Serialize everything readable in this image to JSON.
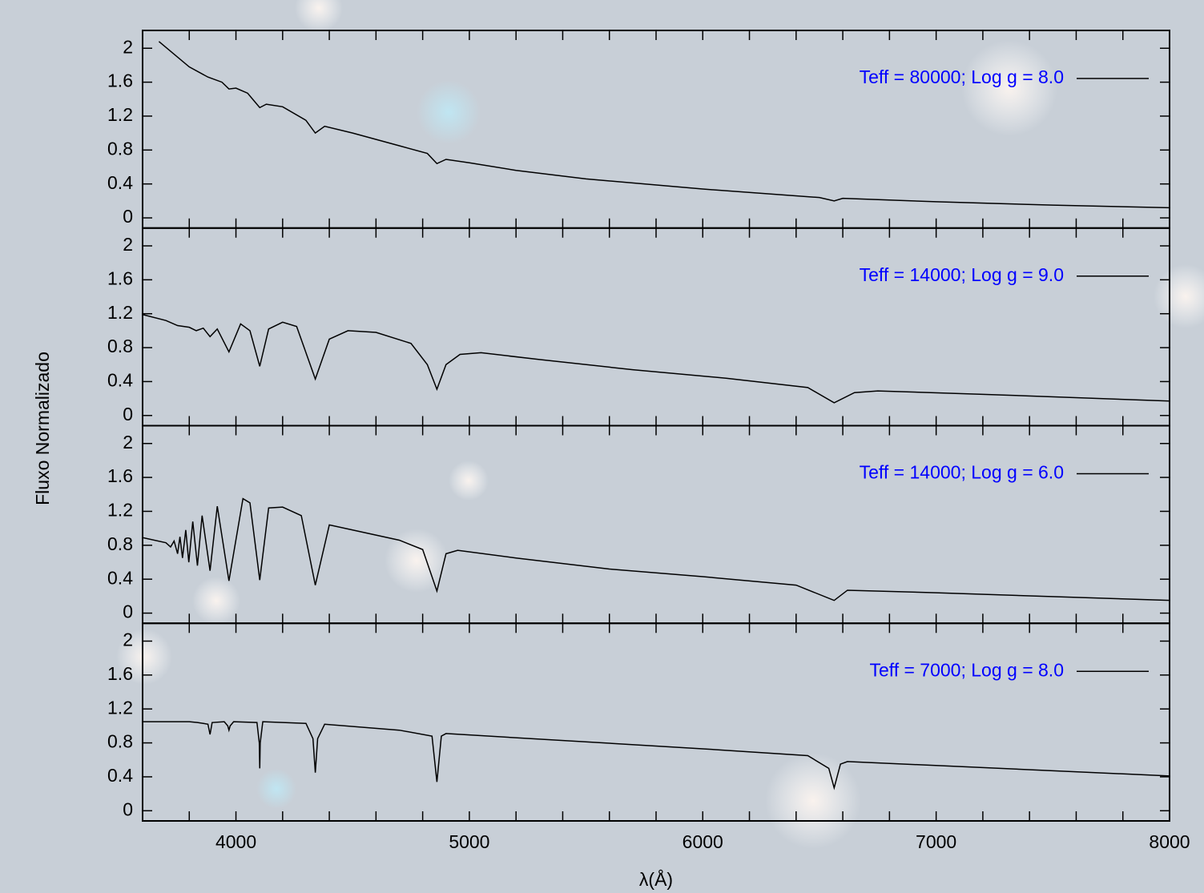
{
  "chart_data": [
    {
      "type": "line",
      "xlim": [
        3600,
        8000
      ],
      "ylim": [
        -0.12,
        2.21
      ],
      "yticks": [
        0,
        0.4,
        0.8,
        1.2,
        1.6,
        2
      ],
      "legend": "top-right",
      "x": [
        3670,
        3800,
        3880,
        3940,
        3970,
        4000,
        4050,
        4102,
        4130,
        4200,
        4300,
        4340,
        4380,
        4500,
        4700,
        4820,
        4861,
        4900,
        5000,
        5200,
        5500,
        6000,
        6500,
        6563,
        6600,
        7000,
        7500,
        8000
      ],
      "series": [
        {
          "name": "Teff = 80000; Log g = 8.0",
          "color": "#000000",
          "values": [
            2.08,
            1.78,
            1.66,
            1.6,
            1.52,
            1.53,
            1.47,
            1.3,
            1.34,
            1.31,
            1.15,
            1.0,
            1.08,
            1.0,
            0.85,
            0.76,
            0.64,
            0.69,
            0.65,
            0.56,
            0.46,
            0.34,
            0.24,
            0.2,
            0.23,
            0.19,
            0.15,
            0.12
          ]
        }
      ]
    },
    {
      "type": "line",
      "xlim": [
        3600,
        8000
      ],
      "ylim": [
        -0.12,
        2.21
      ],
      "yticks": [
        0,
        0.4,
        0.8,
        1.2,
        1.6,
        2
      ],
      "legend": "top-right",
      "x": [
        3600,
        3700,
        3750,
        3800,
        3830,
        3860,
        3889,
        3920,
        3970,
        4020,
        4060,
        4102,
        4140,
        4200,
        4260,
        4340,
        4400,
        4480,
        4600,
        4750,
        4820,
        4861,
        4900,
        4960,
        5050,
        5300,
        5700,
        6100,
        6450,
        6563,
        6650,
        6750,
        7200,
        8000
      ],
      "series": [
        {
          "name": "Teff = 14000; Log g = 9.0",
          "color": "#000000",
          "values": [
            1.19,
            1.12,
            1.06,
            1.04,
            1.0,
            1.03,
            0.93,
            1.02,
            0.75,
            1.08,
            1.0,
            0.58,
            1.02,
            1.1,
            1.05,
            0.43,
            0.9,
            1.0,
            0.98,
            0.85,
            0.6,
            0.31,
            0.6,
            0.72,
            0.74,
            0.66,
            0.54,
            0.44,
            0.33,
            0.15,
            0.27,
            0.29,
            0.25,
            0.17
          ]
        }
      ]
    },
    {
      "type": "line",
      "xlim": [
        3600,
        8000
      ],
      "ylim": [
        -0.12,
        2.21
      ],
      "yticks": [
        0,
        0.4,
        0.8,
        1.2,
        1.6,
        2
      ],
      "legend": "top-right",
      "x": [
        3600,
        3700,
        3720,
        3735,
        3750,
        3760,
        3771,
        3785,
        3798,
        3815,
        3835,
        3855,
        3889,
        3920,
        3970,
        4030,
        4060,
        4102,
        4140,
        4200,
        4280,
        4340,
        4400,
        4500,
        4700,
        4800,
        4861,
        4900,
        4950,
        5200,
        5600,
        6000,
        6400,
        6563,
        6620,
        7000,
        8000
      ],
      "series": [
        {
          "name": "Teff = 14000; Log g = 6.0",
          "color": "#000000",
          "values": [
            0.89,
            0.83,
            0.78,
            0.85,
            0.7,
            0.9,
            0.65,
            0.98,
            0.6,
            1.08,
            0.56,
            1.15,
            0.5,
            1.26,
            0.38,
            1.35,
            1.3,
            0.39,
            1.24,
            1.25,
            1.15,
            0.33,
            1.04,
            0.98,
            0.86,
            0.75,
            0.26,
            0.7,
            0.74,
            0.65,
            0.52,
            0.43,
            0.33,
            0.15,
            0.27,
            0.24,
            0.15
          ]
        }
      ]
    },
    {
      "type": "line",
      "xlim": [
        3600,
        8000
      ],
      "ylim": [
        -0.12,
        2.21
      ],
      "yticks": [
        0,
        0.4,
        0.8,
        1.2,
        1.6,
        2
      ],
      "legend": "top-right",
      "xticks": [
        4000,
        5000,
        6000,
        7000,
        8000
      ],
      "xminorticks": [
        3800,
        4200,
        4400,
        4600,
        4800,
        5200,
        5400,
        5600,
        5800,
        6200,
        6400,
        6600,
        6800,
        7200,
        7400,
        7600,
        7800
      ],
      "x": [
        3600,
        3800,
        3835,
        3860,
        3880,
        3889,
        3898,
        3950,
        3965,
        3970,
        3975,
        3990,
        4090,
        4100,
        4102,
        4104,
        4115,
        4300,
        4330,
        4340,
        4350,
        4380,
        4700,
        4840,
        4861,
        4880,
        4900,
        6000,
        6450,
        6540,
        6563,
        6590,
        6620,
        8000
      ],
      "series": [
        {
          "name": "Teff = 7000; Log g = 8.0",
          "color": "#000000",
          "values": [
            1.05,
            1.05,
            1.04,
            1.03,
            1.02,
            0.9,
            1.04,
            1.05,
            1.0,
            0.95,
            1.0,
            1.05,
            1.04,
            0.8,
            0.5,
            0.8,
            1.05,
            1.03,
            0.85,
            0.45,
            0.85,
            1.02,
            0.95,
            0.88,
            0.34,
            0.88,
            0.91,
            0.73,
            0.65,
            0.5,
            0.27,
            0.55,
            0.58,
            0.41
          ]
        }
      ]
    }
  ],
  "figure": {
    "xlabel": "λ(Å)",
    "ylabel": "Fluxo Normalizado"
  }
}
